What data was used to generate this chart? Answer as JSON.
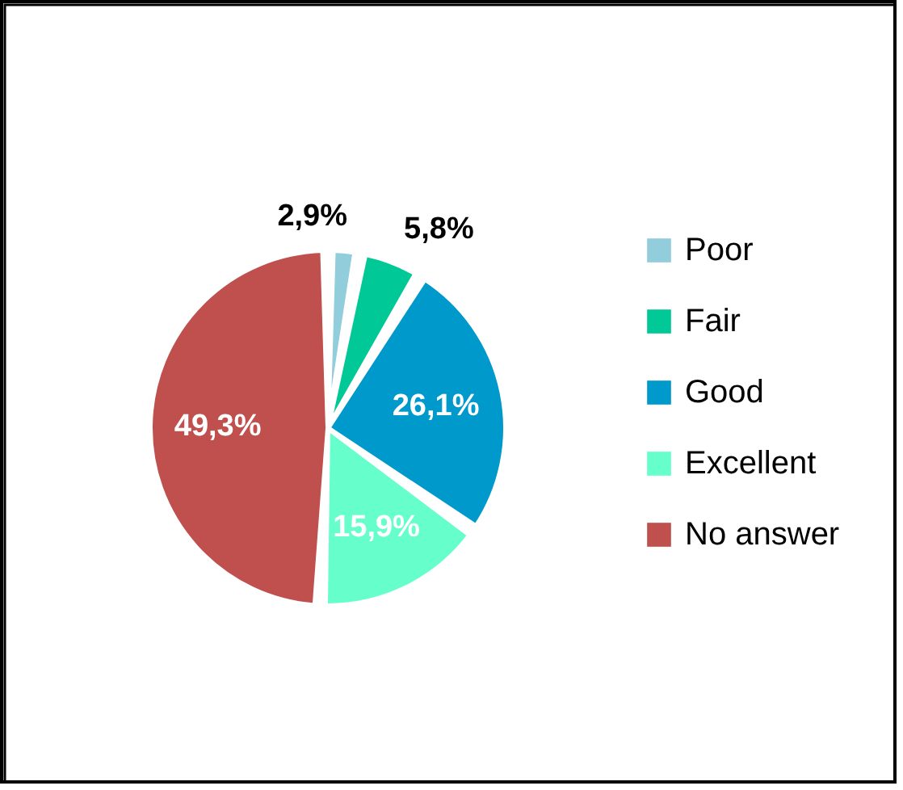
{
  "chart_data": {
    "type": "pie",
    "categories": [
      "Poor",
      "Fair",
      "Good",
      "Excellent",
      "No answer"
    ],
    "values": [
      2.9,
      5.8,
      26.1,
      15.9,
      49.3
    ],
    "value_labels": [
      "2,9%",
      "5,8%",
      "26,1%",
      "15,9%",
      "49,3%"
    ],
    "colors": [
      "#92cddc",
      "#00c896",
      "#0099cc",
      "#66ffcc",
      "#c0504d"
    ],
    "legend": "right"
  }
}
